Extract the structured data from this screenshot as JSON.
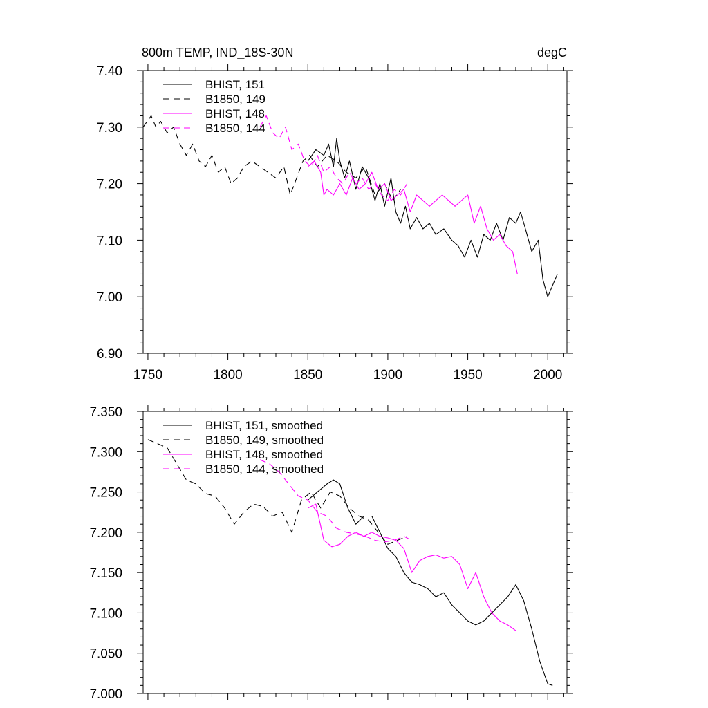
{
  "page": {
    "title": "800m TEMP, IND_18S-30N",
    "units": "degC"
  },
  "colors": {
    "bhist": "#000000",
    "b1850": "#000000",
    "bhist_alt": "#ff00ff",
    "b1850_alt": "#ff00ff",
    "axis": "#000000",
    "background": "#ffffff"
  },
  "chart_data": [
    {
      "type": "line",
      "title": "800m TEMP, IND_18S-30N",
      "units_label": "degC",
      "xlabel": "",
      "ylabel": "",
      "xlim": [
        1747,
        2012
      ],
      "ylim": [
        6.9,
        7.4
      ],
      "x_ticks": [
        1750,
        1800,
        1850,
        1900,
        1950,
        2000
      ],
      "x_tick_labels": [
        "1750",
        "1800",
        "1850",
        "1900",
        "1950",
        "2000"
      ],
      "y_ticks": [
        6.9,
        7.0,
        7.1,
        7.2,
        7.3,
        7.4
      ],
      "y_tick_labels": [
        "6.90",
        "7.00",
        "7.10",
        "7.20",
        "7.30",
        "7.40"
      ],
      "grid": false,
      "legend_position": "top-left",
      "series": [
        {
          "name": "BHIST, 151",
          "color": "#000000",
          "dash": "solid",
          "x": [
            1850,
            1855,
            1860,
            1863,
            1866,
            1868,
            1870,
            1873,
            1876,
            1880,
            1884,
            1888,
            1892,
            1895,
            1898,
            1902,
            1905,
            1908,
            1911,
            1914,
            1918,
            1922,
            1926,
            1930,
            1935,
            1940,
            1944,
            1948,
            1952,
            1956,
            1960,
            1964,
            1968,
            1972,
            1976,
            1980,
            1983,
            1986,
            1990,
            1994,
            1997,
            2000,
            2003,
            2006
          ],
          "values": [
            7.24,
            7.26,
            7.25,
            7.27,
            7.23,
            7.28,
            7.24,
            7.21,
            7.24,
            7.19,
            7.23,
            7.21,
            7.17,
            7.2,
            7.16,
            7.21,
            7.15,
            7.13,
            7.16,
            7.12,
            7.14,
            7.12,
            7.13,
            7.11,
            7.12,
            7.1,
            7.09,
            7.07,
            7.1,
            7.07,
            7.11,
            7.1,
            7.13,
            7.1,
            7.14,
            7.13,
            7.15,
            7.12,
            7.08,
            7.1,
            7.03,
            7.0,
            7.02,
            7.04
          ]
        },
        {
          "name": "B1850, 149",
          "color": "#000000",
          "dash": "dashed",
          "x": [
            1747,
            1752,
            1755,
            1758,
            1762,
            1766,
            1770,
            1774,
            1778,
            1782,
            1786,
            1790,
            1794,
            1798,
            1802,
            1806,
            1810,
            1815,
            1820,
            1825,
            1830,
            1835,
            1839,
            1843,
            1847,
            1851,
            1856,
            1862,
            1868,
            1874,
            1880,
            1886,
            1892,
            1898,
            1903,
            1908
          ],
          "values": [
            7.3,
            7.32,
            7.3,
            7.31,
            7.29,
            7.3,
            7.27,
            7.25,
            7.27,
            7.24,
            7.23,
            7.25,
            7.22,
            7.23,
            7.2,
            7.21,
            7.23,
            7.24,
            7.23,
            7.22,
            7.21,
            7.23,
            7.18,
            7.21,
            7.24,
            7.25,
            7.23,
            7.25,
            7.24,
            7.22,
            7.21,
            7.23,
            7.18,
            7.2,
            7.17,
            7.19
          ]
        },
        {
          "name": "BHIST, 148",
          "color": "#ff00ff",
          "dash": "solid",
          "x": [
            1850,
            1854,
            1858,
            1860,
            1862,
            1866,
            1870,
            1874,
            1878,
            1882,
            1886,
            1890,
            1894,
            1898,
            1902,
            1906,
            1910,
            1914,
            1918,
            1922,
            1926,
            1930,
            1934,
            1938,
            1942,
            1946,
            1950,
            1954,
            1958,
            1962,
            1966,
            1970,
            1974,
            1978,
            1981
          ],
          "values": [
            7.23,
            7.24,
            7.22,
            7.18,
            7.19,
            7.18,
            7.2,
            7.18,
            7.21,
            7.19,
            7.2,
            7.22,
            7.19,
            7.2,
            7.17,
            7.18,
            7.19,
            7.15,
            7.18,
            7.17,
            7.16,
            7.17,
            7.18,
            7.17,
            7.16,
            7.17,
            7.18,
            7.13,
            7.16,
            7.12,
            7.1,
            7.11,
            7.09,
            7.08,
            7.04
          ]
        },
        {
          "name": "B1850, 144",
          "color": "#ff00ff",
          "dash": "dashed",
          "x": [
            1820,
            1824,
            1828,
            1832,
            1836,
            1840,
            1844,
            1848,
            1852,
            1856,
            1860,
            1864,
            1868,
            1872,
            1876,
            1880,
            1884,
            1888,
            1892,
            1896,
            1900,
            1904,
            1908,
            1912
          ],
          "values": [
            7.3,
            7.32,
            7.29,
            7.28,
            7.3,
            7.26,
            7.27,
            7.24,
            7.23,
            7.25,
            7.22,
            7.23,
            7.21,
            7.2,
            7.22,
            7.2,
            7.21,
            7.19,
            7.2,
            7.18,
            7.17,
            7.19,
            7.18,
            7.2
          ]
        }
      ]
    },
    {
      "type": "line",
      "title": "",
      "xlabel": "",
      "ylabel": "",
      "xlim": [
        1747,
        2012
      ],
      "ylim": [
        7.0,
        7.35
      ],
      "x_ticks": [
        1750,
        1800,
        1850,
        1900,
        1950,
        2000
      ],
      "x_tick_labels": [],
      "y_ticks": [
        7.0,
        7.05,
        7.1,
        7.15,
        7.2,
        7.25,
        7.3,
        7.35
      ],
      "y_tick_labels": [
        "7.000",
        "7.050",
        "7.100",
        "7.150",
        "7.200",
        "7.250",
        "7.300",
        "7.350"
      ],
      "grid": false,
      "legend_position": "top-left",
      "series": [
        {
          "name": "BHIST, 151, smoothed",
          "color": "#000000",
          "dash": "solid",
          "x": [
            1850,
            1856,
            1862,
            1866,
            1870,
            1875,
            1880,
            1885,
            1890,
            1895,
            1900,
            1905,
            1910,
            1915,
            1920,
            1925,
            1930,
            1935,
            1940,
            1945,
            1950,
            1955,
            1960,
            1965,
            1970,
            1975,
            1980,
            1985,
            1990,
            1995,
            2000,
            2003
          ],
          "values": [
            7.24,
            7.25,
            7.26,
            7.265,
            7.26,
            7.23,
            7.21,
            7.22,
            7.22,
            7.2,
            7.18,
            7.17,
            7.15,
            7.138,
            7.135,
            7.13,
            7.12,
            7.125,
            7.11,
            7.1,
            7.09,
            7.085,
            7.09,
            7.1,
            7.11,
            7.12,
            7.135,
            7.115,
            7.08,
            7.04,
            7.012,
            7.01
          ]
        },
        {
          "name": "B1850, 149, smoothed",
          "color": "#000000",
          "dash": "dashed",
          "x": [
            1750,
            1756,
            1762,
            1768,
            1774,
            1780,
            1786,
            1792,
            1798,
            1804,
            1810,
            1816,
            1822,
            1828,
            1834,
            1840,
            1846,
            1852,
            1858,
            1864,
            1870,
            1876,
            1882,
            1888,
            1894,
            1900,
            1906,
            1912
          ],
          "values": [
            7.315,
            7.31,
            7.305,
            7.285,
            7.265,
            7.26,
            7.248,
            7.245,
            7.23,
            7.21,
            7.225,
            7.235,
            7.232,
            7.22,
            7.225,
            7.2,
            7.24,
            7.25,
            7.23,
            7.25,
            7.245,
            7.23,
            7.22,
            7.215,
            7.2,
            7.185,
            7.19,
            7.195
          ]
        },
        {
          "name": "BHIST, 148, smoothed",
          "color": "#ff00ff",
          "dash": "solid",
          "x": [
            1850,
            1855,
            1860,
            1865,
            1870,
            1875,
            1880,
            1885,
            1890,
            1895,
            1900,
            1905,
            1910,
            1915,
            1920,
            1925,
            1930,
            1935,
            1940,
            1945,
            1950,
            1955,
            1960,
            1965,
            1970,
            1975,
            1980
          ],
          "values": [
            7.23,
            7.235,
            7.19,
            7.182,
            7.185,
            7.195,
            7.2,
            7.195,
            7.2,
            7.195,
            7.193,
            7.19,
            7.18,
            7.15,
            7.165,
            7.17,
            7.172,
            7.168,
            7.17,
            7.16,
            7.13,
            7.15,
            7.12,
            7.1,
            7.09,
            7.085,
            7.078
          ]
        },
        {
          "name": "B1850, 144, smoothed",
          "color": "#ff00ff",
          "dash": "dashed",
          "x": [
            1820,
            1826,
            1832,
            1838,
            1844,
            1850,
            1856,
            1862,
            1868,
            1874,
            1880,
            1886,
            1892,
            1898,
            1904,
            1910,
            1913
          ],
          "values": [
            7.29,
            7.285,
            7.275,
            7.26,
            7.245,
            7.24,
            7.225,
            7.22,
            7.205,
            7.2,
            7.198,
            7.195,
            7.19,
            7.188,
            7.19,
            7.195,
            7.192
          ]
        }
      ]
    }
  ]
}
